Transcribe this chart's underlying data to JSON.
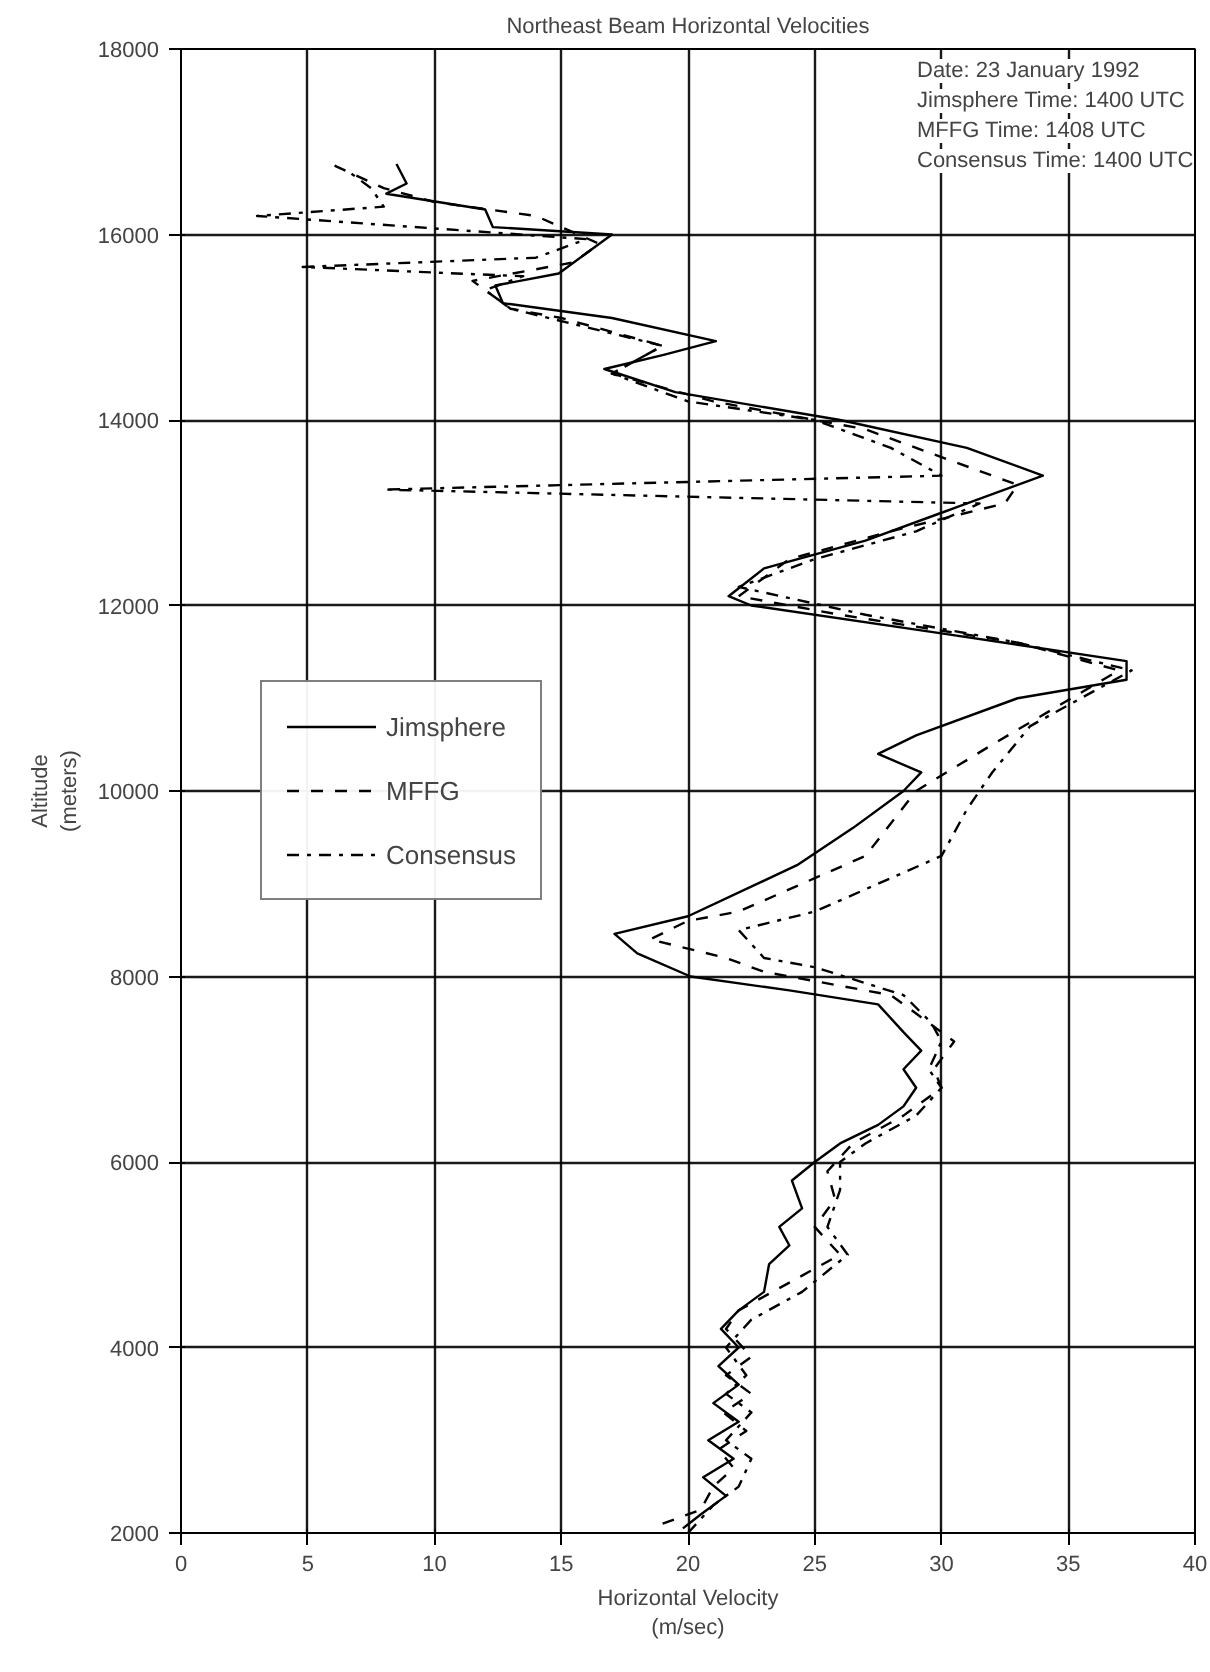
{
  "chart_data": {
    "type": "line",
    "title": "Northeast Beam Horizontal Velocities",
    "xlabel": "Horizontal Velocity\n(m/sec)",
    "ylabel": "Altitude\n(meters)",
    "annotations": [
      "Date: 23 January 1992",
      "Jimsphere Time: 1400 UTC",
      "MFFG Time: 1408 UTC",
      "Consensus Time: 1400 UTC"
    ],
    "xlim": [
      0,
      40
    ],
    "xticks": [
      0,
      5,
      10,
      15,
      20,
      25,
      30,
      35,
      40
    ],
    "ylim": [
      2000,
      18000
    ],
    "yticks": [
      2000,
      4000,
      6000,
      8000,
      10000,
      12000,
      14000,
      16000,
      18000
    ],
    "grid": true,
    "legend": "left",
    "marker": "none",
    "series": [
      {
        "name": "Jimsphere",
        "color": "#000000",
        "line_style": "solid",
        "x": [
          19.8,
          20.5,
          21.5,
          20.6,
          21.8,
          20.8,
          22,
          21,
          22,
          21.2,
          22,
          21.3,
          22,
          23,
          23.2,
          24,
          23.6,
          24.5,
          24.1,
          25,
          26,
          27.5,
          28.5,
          29,
          28.5,
          29.2,
          28.5,
          27.5,
          24,
          20.1,
          18,
          17.1,
          20,
          24.3,
          26.5,
          28.5,
          29.2,
          27.5,
          29,
          33,
          37.3,
          37.3,
          30,
          22.5,
          21.6,
          23,
          27,
          30,
          34,
          31,
          26,
          19.5,
          16.7,
          19,
          21.1,
          17,
          12.7,
          12.4,
          14.9,
          17,
          12.3,
          12,
          8.1,
          8.9,
          8.5
        ],
        "values": [
          2050,
          2200,
          2400,
          2600,
          2800,
          3000,
          3200,
          3400,
          3600,
          3800,
          4000,
          4200,
          4400,
          4600,
          4900,
          5100,
          5300,
          5500,
          5800,
          6000,
          6200,
          6400,
          6600,
          6800,
          7000,
          7200,
          7400,
          7700,
          7850,
          8000,
          8250,
          8460,
          8650,
          9200,
          9600,
          10000,
          10200,
          10400,
          10600,
          11000,
          11200,
          11400,
          11700,
          12000,
          12100,
          12400,
          12700,
          13000,
          13400,
          13700,
          14000,
          14300,
          14550,
          14700,
          14850,
          15100,
          15260,
          15450,
          15580,
          16000,
          16080,
          16270,
          16440,
          16550,
          16760
        ]
      },
      {
        "name": "MFFG",
        "color": "#000000",
        "line_style": "dashed",
        "x": [
          19,
          20.5,
          21,
          21.8,
          21.2,
          22.3,
          21.4,
          22.5,
          21.5,
          22.5,
          21.5,
          22,
          24,
          26,
          25,
          25.8,
          25.5,
          26.5,
          28.5,
          30,
          29.7,
          30.5,
          29.5,
          28,
          23,
          21.5,
          18.5,
          20,
          22,
          27,
          29,
          32,
          37,
          33,
          26,
          22,
          24,
          28,
          32.5,
          33,
          30,
          27,
          21,
          17,
          19,
          15,
          13,
          11.5,
          15.5,
          16.5,
          14,
          10,
          8,
          6
        ],
        "values": [
          2100,
          2250,
          2500,
          2700,
          2900,
          3100,
          3300,
          3500,
          3700,
          3900,
          4200,
          4400,
          4700,
          5000,
          5300,
          5600,
          5900,
          6200,
          6500,
          6800,
          7000,
          7300,
          7500,
          7800,
          8050,
          8200,
          8400,
          8600,
          8700,
          9300,
          10000,
          10500,
          11300,
          11600,
          11900,
          12100,
          12500,
          12800,
          13100,
          13300,
          13600,
          13900,
          14200,
          14500,
          14800,
          15100,
          15200,
          15500,
          15700,
          15900,
          16200,
          16350,
          16500,
          16750
        ]
      },
      {
        "name": "Consensus",
        "color": "#000000",
        "line_style": "dotted",
        "x": [
          20,
          21,
          22,
          22.5,
          21.5,
          22.5,
          21.5,
          22.3,
          21.5,
          22.5,
          24.5,
          26.3,
          25.5,
          26,
          26,
          27,
          29,
          30,
          29.5,
          30,
          29.6,
          28.5,
          25,
          23,
          22,
          25,
          30,
          31,
          32,
          33.5,
          37.5,
          33,
          27,
          22,
          25,
          29,
          31.5,
          8,
          30,
          28,
          25,
          20,
          17,
          19,
          16,
          13,
          12,
          13.5,
          4.8,
          14,
          16,
          3,
          8,
          7.5,
          6.5
        ],
        "values": [
          2000,
          2300,
          2500,
          2800,
          3000,
          3300,
          3500,
          3700,
          4000,
          4300,
          4600,
          5000,
          5300,
          5700,
          6000,
          6200,
          6500,
          6800,
          7000,
          7300,
          7500,
          7800,
          8100,
          8200,
          8500,
          8700,
          9300,
          9800,
          10200,
          10700,
          11300,
          11600,
          11900,
          12200,
          12500,
          12800,
          13100,
          13250,
          13400,
          13700,
          14000,
          14200,
          14500,
          14800,
          15000,
          15200,
          15400,
          15550,
          15650,
          15750,
          15950,
          16200,
          16300,
          16500,
          16700
        ]
      }
    ]
  }
}
